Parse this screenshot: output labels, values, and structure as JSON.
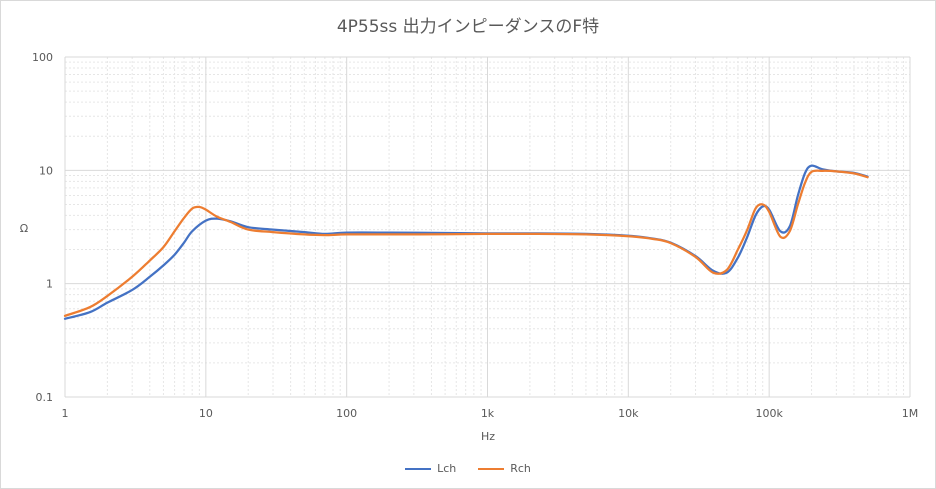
{
  "chart_data": {
    "type": "line",
    "title": "4P55ss 出力インピーダンスのF特",
    "xlabel": "Hz",
    "ylabel": "Ω",
    "xscale": "log",
    "yscale": "log",
    "xlim": [
      1,
      1000000
    ],
    "ylim": [
      0.1,
      100
    ],
    "xticks": [
      {
        "value": 1,
        "label": "1"
      },
      {
        "value": 10,
        "label": "10"
      },
      {
        "value": 100,
        "label": "100"
      },
      {
        "value": 1000,
        "label": "1k"
      },
      {
        "value": 10000,
        "label": "10k"
      },
      {
        "value": 100000,
        "label": "100k"
      },
      {
        "value": 1000000,
        "label": "1M"
      }
    ],
    "yticks": [
      {
        "value": 0.1,
        "label": "0.1"
      },
      {
        "value": 1,
        "label": "1"
      },
      {
        "value": 10,
        "label": "10"
      },
      {
        "value": 100,
        "label": "100"
      }
    ],
    "grid": true,
    "legend_position": "bottom",
    "series": [
      {
        "name": "Lch",
        "color": "#4472c4",
        "points": [
          [
            1,
            0.49
          ],
          [
            1.5,
            0.56
          ],
          [
            2,
            0.68
          ],
          [
            3,
            0.88
          ],
          [
            4,
            1.15
          ],
          [
            5,
            1.45
          ],
          [
            6,
            1.8
          ],
          [
            7,
            2.3
          ],
          [
            8,
            2.9
          ],
          [
            10,
            3.6
          ],
          [
            12,
            3.75
          ],
          [
            15,
            3.55
          ],
          [
            20,
            3.15
          ],
          [
            30,
            3.0
          ],
          [
            50,
            2.85
          ],
          [
            70,
            2.75
          ],
          [
            100,
            2.82
          ],
          [
            200,
            2.82
          ],
          [
            500,
            2.8
          ],
          [
            1000,
            2.78
          ],
          [
            2000,
            2.78
          ],
          [
            5000,
            2.75
          ],
          [
            10000,
            2.65
          ],
          [
            15000,
            2.5
          ],
          [
            20000,
            2.3
          ],
          [
            30000,
            1.75
          ],
          [
            40000,
            1.3
          ],
          [
            50000,
            1.25
          ],
          [
            60000,
            1.7
          ],
          [
            70000,
            2.6
          ],
          [
            80000,
            4.0
          ],
          [
            90000,
            4.8
          ],
          [
            100000,
            4.5
          ],
          [
            120000,
            2.9
          ],
          [
            140000,
            3.2
          ],
          [
            160000,
            6.0
          ],
          [
            180000,
            9.5
          ],
          [
            200000,
            11.0
          ],
          [
            240000,
            10.2
          ],
          [
            300000,
            9.8
          ],
          [
            400000,
            9.5
          ],
          [
            500000,
            8.8
          ]
        ]
      },
      {
        "name": "Rch",
        "color": "#ed7d31",
        "points": [
          [
            1,
            0.52
          ],
          [
            1.5,
            0.62
          ],
          [
            2,
            0.78
          ],
          [
            3,
            1.15
          ],
          [
            4,
            1.6
          ],
          [
            5,
            2.1
          ],
          [
            6,
            2.9
          ],
          [
            7,
            3.8
          ],
          [
            8,
            4.6
          ],
          [
            9,
            4.75
          ],
          [
            10,
            4.5
          ],
          [
            12,
            3.9
          ],
          [
            15,
            3.5
          ],
          [
            20,
            3.0
          ],
          [
            30,
            2.85
          ],
          [
            50,
            2.72
          ],
          [
            70,
            2.68
          ],
          [
            100,
            2.72
          ],
          [
            200,
            2.72
          ],
          [
            500,
            2.73
          ],
          [
            1000,
            2.75
          ],
          [
            2000,
            2.75
          ],
          [
            5000,
            2.72
          ],
          [
            10000,
            2.62
          ],
          [
            15000,
            2.48
          ],
          [
            20000,
            2.28
          ],
          [
            30000,
            1.72
          ],
          [
            40000,
            1.25
          ],
          [
            50000,
            1.32
          ],
          [
            60000,
            2.0
          ],
          [
            70000,
            3.0
          ],
          [
            80000,
            4.6
          ],
          [
            90000,
            5.0
          ],
          [
            100000,
            4.3
          ],
          [
            120000,
            2.6
          ],
          [
            140000,
            2.9
          ],
          [
            160000,
            5.0
          ],
          [
            180000,
            7.8
          ],
          [
            200000,
            9.7
          ],
          [
            240000,
            9.9
          ],
          [
            300000,
            9.8
          ],
          [
            400000,
            9.4
          ],
          [
            500000,
            8.7
          ]
        ]
      }
    ]
  }
}
